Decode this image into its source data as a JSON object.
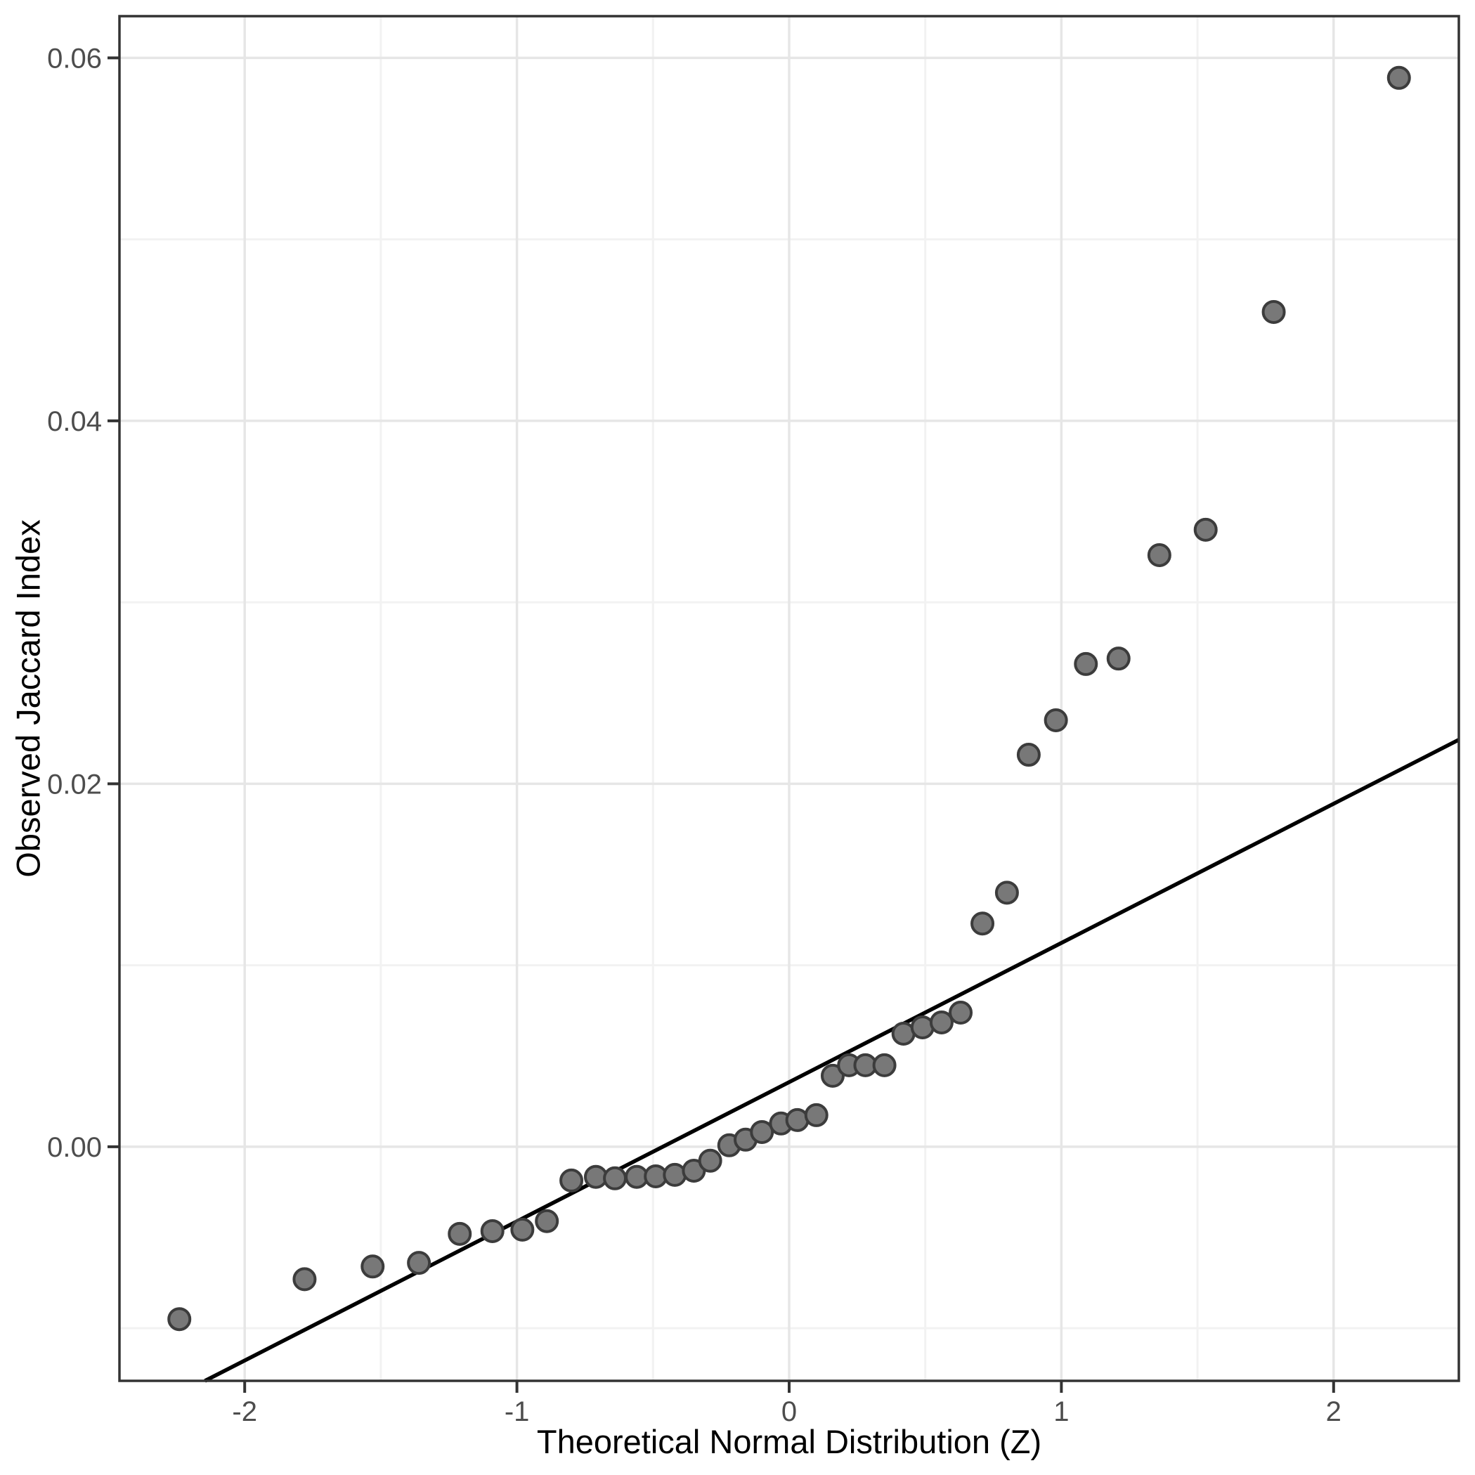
{
  "chart_data": {
    "type": "scatter",
    "title": "",
    "xlabel": "Theoretical Normal Distribution (Z)",
    "ylabel": "Observed Jaccard Index",
    "xlim": [
      -2.46,
      2.46
    ],
    "ylim": [
      -0.0129,
      0.0623
    ],
    "grid": true,
    "legend_position": "none",
    "x_ticks": {
      "values": [
        -2,
        -1,
        0,
        1,
        2
      ],
      "labels": [
        "-2",
        "-1",
        "0",
        "1",
        "2"
      ]
    },
    "y_ticks": {
      "values": [
        0.0,
        0.02,
        0.04,
        0.06
      ],
      "labels": [
        "0.00",
        "0.02",
        "0.04",
        "0.06"
      ]
    },
    "x_minor": [
      -1.5,
      -0.5,
      0.5,
      1.5
    ],
    "y_minor": [
      -0.01,
      0.01,
      0.03,
      0.05
    ],
    "reference_line": {
      "slope": 0.00767,
      "intercept": 0.00356
    },
    "points": [
      {
        "z": -2.24,
        "jaccard": -0.0095
      },
      {
        "z": -1.78,
        "jaccard": -0.0073
      },
      {
        "z": -1.53,
        "jaccard": -0.0066
      },
      {
        "z": -1.36,
        "jaccard": -0.0064
      },
      {
        "z": -1.21,
        "jaccard": -0.0048
      },
      {
        "z": -1.09,
        "jaccard": -0.00465
      },
      {
        "z": -0.98,
        "jaccard": -0.00457
      },
      {
        "z": -0.89,
        "jaccard": -0.0041
      },
      {
        "z": -0.8,
        "jaccard": -0.00186
      },
      {
        "z": -0.71,
        "jaccard": -0.00166
      },
      {
        "z": -0.64,
        "jaccard": -0.00174
      },
      {
        "z": -0.56,
        "jaccard": -0.00166
      },
      {
        "z": -0.49,
        "jaccard": -0.00163
      },
      {
        "z": -0.42,
        "jaccard": -0.00155
      },
      {
        "z": -0.35,
        "jaccard": -0.00132
      },
      {
        "z": -0.29,
        "jaccard": -0.00077
      },
      {
        "z": -0.22,
        "jaccard": 8e-05
      },
      {
        "z": -0.16,
        "jaccard": 0.00039
      },
      {
        "z": -0.1,
        "jaccard": 0.00081
      },
      {
        "z": -0.03,
        "jaccard": 0.00128
      },
      {
        "z": 0.03,
        "jaccard": 0.00147
      },
      {
        "z": 0.1,
        "jaccard": 0.00174
      },
      {
        "z": 0.16,
        "jaccard": 0.00391
      },
      {
        "z": 0.22,
        "jaccard": 0.00449
      },
      {
        "z": 0.28,
        "jaccard": 0.00449
      },
      {
        "z": 0.35,
        "jaccard": 0.00449
      },
      {
        "z": 0.42,
        "jaccard": 0.00623
      },
      {
        "z": 0.49,
        "jaccard": 0.00658
      },
      {
        "z": 0.56,
        "jaccard": 0.00685
      },
      {
        "z": 0.63,
        "jaccard": 0.00739
      },
      {
        "z": 0.71,
        "jaccard": 0.0123
      },
      {
        "z": 0.8,
        "jaccard": 0.014
      },
      {
        "z": 0.88,
        "jaccard": 0.0216
      },
      {
        "z": 0.98,
        "jaccard": 0.0235
      },
      {
        "z": 1.09,
        "jaccard": 0.0266
      },
      {
        "z": 1.21,
        "jaccard": 0.0269
      },
      {
        "z": 1.36,
        "jaccard": 0.0326
      },
      {
        "z": 1.53,
        "jaccard": 0.034
      },
      {
        "z": 1.78,
        "jaccard": 0.046
      },
      {
        "z": 2.24,
        "jaccard": 0.0589
      }
    ],
    "colors": {
      "background": "#FFFFFF",
      "panel_border": "#333333",
      "grid_major": "#E6E6E6",
      "grid_minor": "#F2F2F2",
      "tick_mark": "#333333",
      "tick_label": "#4D4D4D",
      "axis_title": "#000000",
      "point_fill": "#787878",
      "point_stroke": "#3C3C3C",
      "ref_line": "#000000"
    }
  }
}
